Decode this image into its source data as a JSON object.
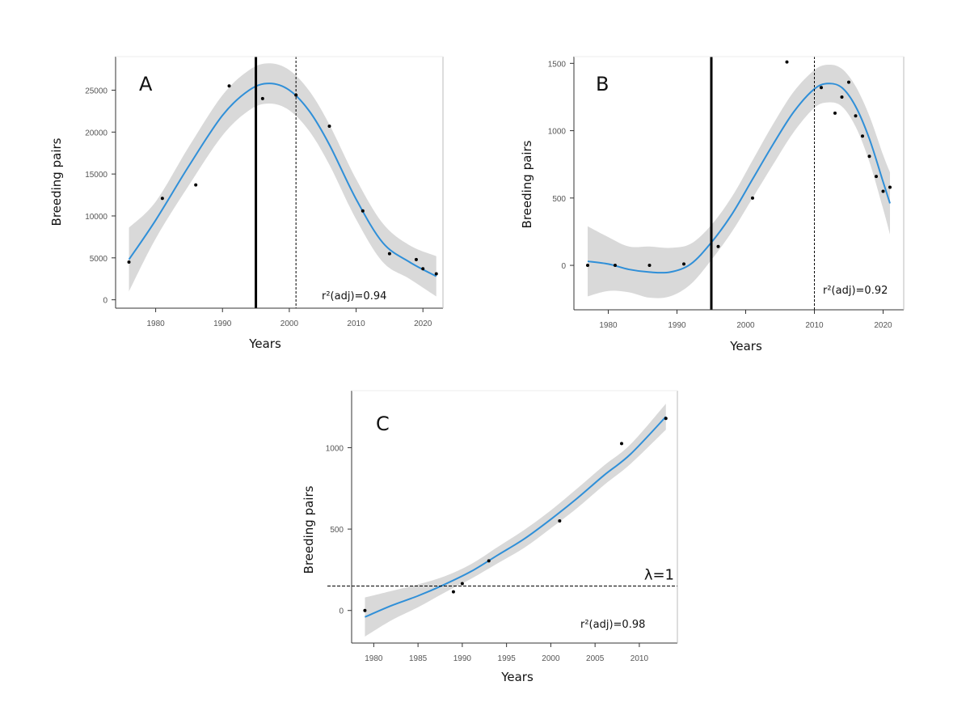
{
  "chart_data": [
    {
      "panel": "A",
      "type": "scatter",
      "title": "",
      "xlabel": "Years",
      "ylabel": "Breeding pairs",
      "xlim": [
        1974,
        2023
      ],
      "ylim": [
        -1000,
        29000
      ],
      "xticks": [
        1980,
        1990,
        2000,
        2010,
        2020
      ],
      "xtick_labels": [
        "1980",
        "1990",
        "2000",
        "2010",
        "2020"
      ],
      "yticks": [
        0,
        5000,
        10000,
        15000,
        20000,
        25000
      ],
      "ytick_labels": [
        "0",
        "5000",
        "10000",
        "15000",
        "20000",
        "25000"
      ],
      "points": {
        "x": [
          1976,
          1981,
          1986,
          1991,
          1996,
          2001,
          2006,
          2011,
          2015,
          2019,
          2020,
          2022
        ],
        "y": [
          4500,
          12100,
          13700,
          25500,
          24000,
          24400,
          20700,
          10600,
          5500,
          4800,
          3700,
          3100
        ]
      },
      "fit": {
        "x": [
          1976,
          1980,
          1985,
          1990,
          1994,
          1997,
          2000,
          2003,
          2006,
          2010,
          2014,
          2018,
          2022
        ],
        "y": [
          4800,
          9500,
          16000,
          22000,
          25000,
          25800,
          25000,
          22500,
          18500,
          12000,
          6800,
          4500,
          2800
        ],
        "ci_halfwidth": [
          3800,
          2200,
          2300,
          2400,
          2400,
          2400,
          2400,
          2400,
          2400,
          2400,
          2300,
          2000,
          2400
        ]
      },
      "vlines": [
        {
          "x": 1995,
          "style": "solid"
        },
        {
          "x": 2001,
          "style": "dashed"
        }
      ],
      "annotation": "r²(adj)=0.94",
      "grid": false
    },
    {
      "panel": "B",
      "type": "scatter",
      "title": "",
      "xlabel": "Years",
      "ylabel": "Breeding pairs",
      "xlim": [
        1975,
        2023
      ],
      "ylim": [
        -330,
        1550
      ],
      "xticks": [
        1980,
        1990,
        2000,
        2010,
        2020
      ],
      "xtick_labels": [
        "1980",
        "1990",
        "2000",
        "2010",
        "2020"
      ],
      "yticks": [
        0,
        500,
        1000,
        1500
      ],
      "ytick_labels": [
        "0",
        "500",
        "1000",
        "1500"
      ],
      "points": {
        "x": [
          1977,
          1981,
          1986,
          1991,
          1996,
          2001,
          2006,
          2011,
          2013,
          2014,
          2015,
          2016,
          2017,
          2018,
          2019,
          2020,
          2021
        ],
        "y": [
          0,
          0,
          0,
          10,
          140,
          500,
          1510,
          1320,
          1130,
          1250,
          1360,
          1110,
          960,
          810,
          660,
          550,
          580
        ]
      },
      "fit": {
        "x": [
          1977,
          1980,
          1983,
          1986,
          1989,
          1992,
          1995,
          1998,
          2001,
          2004,
          2007,
          2010,
          2012,
          2014,
          2016,
          2018,
          2020,
          2021
        ],
        "y": [
          30,
          10,
          -30,
          -50,
          -50,
          10,
          170,
          380,
          640,
          900,
          1140,
          1310,
          1350,
          1320,
          1180,
          940,
          620,
          460
        ],
        "ci_halfwidth": [
          260,
          200,
          170,
          190,
          180,
          150,
          130,
          130,
          140,
          150,
          150,
          140,
          140,
          140,
          150,
          170,
          200,
          230
        ]
      },
      "vlines": [
        {
          "x": 1995,
          "style": "solid"
        },
        {
          "x": 2010,
          "style": "dashed"
        }
      ],
      "annotation": "r²(adj)=0.92",
      "grid": false
    },
    {
      "panel": "C",
      "type": "scatter",
      "title": "",
      "xlabel": "Years",
      "ylabel": "Breeding pairs",
      "xlim": [
        1977.5,
        2014.3
      ],
      "ylim": [
        -200,
        1350
      ],
      "xticks": [
        1980,
        1985,
        1990,
        1995,
        2000,
        2005,
        2010
      ],
      "xtick_labels": [
        "1980",
        "1985",
        "1990",
        "1995",
        "2000",
        "2005",
        "2010"
      ],
      "yticks": [
        0,
        500,
        1000
      ],
      "ytick_labels": [
        "0",
        "500",
        "1000"
      ],
      "points": {
        "x": [
          1979,
          1989,
          1990,
          1993,
          2001,
          2008,
          2013
        ],
        "y": [
          0,
          115,
          165,
          305,
          550,
          1025,
          1180
        ]
      },
      "fit": {
        "x": [
          1979,
          1982,
          1985,
          1988,
          1991,
          1994,
          1997,
          2000,
          2003,
          2006,
          2009,
          2013
        ],
        "y": [
          -40,
          30,
          90,
          160,
          240,
          340,
          440,
          560,
          690,
          830,
          960,
          1190
        ],
        "ci_halfwidth": [
          120,
          90,
          70,
          50,
          45,
          50,
          55,
          55,
          60,
          60,
          60,
          80
        ]
      },
      "hlines": [
        {
          "y": 150,
          "style": "dashed",
          "label": "λ=1"
        }
      ],
      "annotation": "r²(adj)=0.98",
      "grid": false
    }
  ]
}
